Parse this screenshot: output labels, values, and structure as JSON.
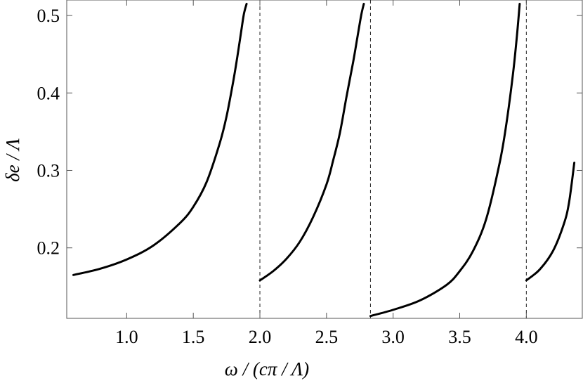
{
  "chart_data": {
    "type": "line",
    "title": "",
    "xlabel": "ω / (cπ / Λ)",
    "ylabel": "δe / Λ",
    "xlim": [
      0.55,
      4.42
    ],
    "ylim": [
      0.109,
      0.52
    ],
    "xticks": [
      1.0,
      1.5,
      2.0,
      2.5,
      3.0,
      3.5,
      4.0
    ],
    "xtick_labels": [
      "1.0",
      "1.5",
      "2.0",
      "2.5",
      "3.0",
      "3.5",
      "4.0"
    ],
    "yticks": [
      0.2,
      0.3,
      0.4,
      0.5
    ],
    "ytick_labels": [
      "0.2",
      "0.3",
      "0.4",
      "0.5"
    ],
    "grid": false,
    "legend": "none",
    "vertical_dashed_lines": [
      2.0,
      2.83,
      4.0
    ],
    "series": [
      {
        "color": "#000000",
        "x": [
          0.6,
          0.8,
          1.0,
          1.2,
          1.4,
          1.5,
          1.6,
          1.7,
          1.75,
          1.8,
          1.83,
          1.86,
          1.88,
          1.9
        ],
        "y": [
          0.165,
          0.173,
          0.185,
          0.203,
          0.232,
          0.253,
          0.285,
          0.336,
          0.37,
          0.415,
          0.446,
          0.48,
          0.502,
          0.515
        ]
      },
      {
        "color": "#000000",
        "x": [
          2.0,
          2.1,
          2.2,
          2.3,
          2.4,
          2.5,
          2.55,
          2.6,
          2.65,
          2.7,
          2.73,
          2.76,
          2.78
        ],
        "y": [
          0.158,
          0.17,
          0.186,
          0.208,
          0.24,
          0.282,
          0.313,
          0.348,
          0.395,
          0.44,
          0.47,
          0.5,
          0.515
        ]
      },
      {
        "color": "#000000",
        "x": [
          2.83,
          3.0,
          3.2,
          3.4,
          3.5,
          3.6,
          3.7,
          3.8,
          3.85,
          3.9,
          3.93,
          3.95
        ],
        "y": [
          0.112,
          0.12,
          0.132,
          0.152,
          0.17,
          0.196,
          0.238,
          0.31,
          0.36,
          0.425,
          0.475,
          0.515
        ]
      },
      {
        "color": "#000000",
        "x": [
          4.0,
          4.1,
          4.2,
          4.28,
          4.32,
          4.36
        ],
        "y": [
          0.158,
          0.172,
          0.196,
          0.23,
          0.258,
          0.31
        ]
      }
    ]
  }
}
